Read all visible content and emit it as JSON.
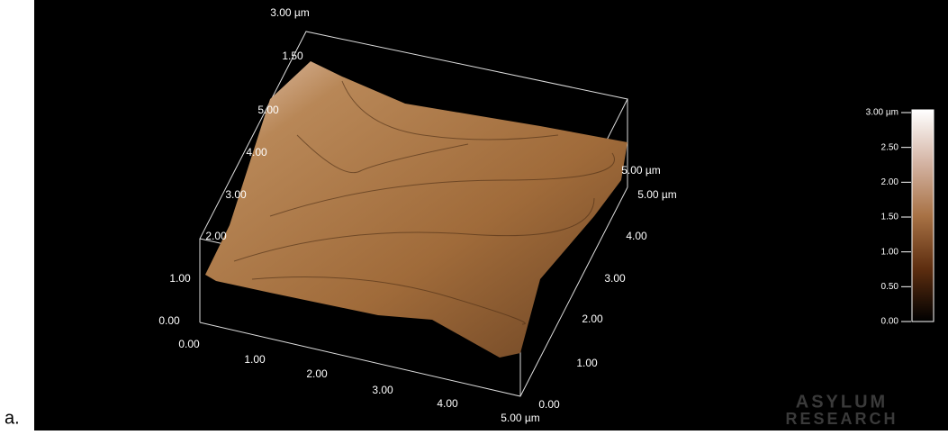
{
  "figure_label": "a.",
  "x_axis": {
    "ticks": [
      "0.00",
      "1.00",
      "2.00",
      "3.00",
      "4.00",
      "5.00 µm"
    ]
  },
  "y_axis": {
    "ticks": [
      "0.00",
      "1.00",
      "2.00",
      "3.00",
      "4.00",
      "5.00 µm"
    ]
  },
  "z_axis": {
    "ticks": [
      "0.00",
      "1.00",
      "2.00"
    ]
  },
  "back_axis": {
    "ticks": [
      "3.00",
      "4.00",
      "5.00",
      "1.50",
      "3.00 µm",
      "5.00 µm"
    ]
  },
  "colorbar": {
    "ticks": [
      "3.00 µm",
      "2.50",
      "2.00",
      "1.50",
      "1.00",
      "0.50",
      "0.00"
    ]
  },
  "watermark": [
    "ASYLUM",
    "RESEARCH"
  ]
}
